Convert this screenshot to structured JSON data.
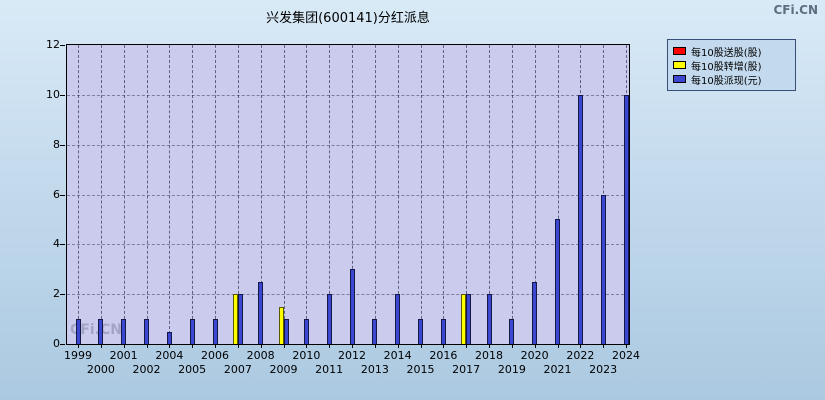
{
  "watermark": "CFi.CN",
  "chart_data": {
    "type": "bar",
    "title": "兴发集团(600141)分红派息",
    "categories": [
      "1999",
      "2000",
      "2001",
      "2002",
      "2004",
      "2005",
      "2006",
      "2007",
      "2008",
      "2009",
      "2010",
      "2011",
      "2012",
      "2013",
      "2014",
      "2015",
      "2016",
      "2017",
      "2018",
      "2019",
      "2020",
      "2021",
      "2022",
      "2023",
      "2024"
    ],
    "series": [
      {
        "name": "每10股送股(股)",
        "color": "#ff0000",
        "values": [
          0,
          0,
          0,
          0,
          0,
          0,
          0,
          0,
          0,
          0,
          0,
          0,
          0,
          0,
          0,
          0,
          0,
          0,
          0,
          0,
          0,
          0,
          0,
          0,
          0
        ]
      },
      {
        "name": "每10股转增(股)",
        "color": "#ffff00",
        "values": [
          0,
          0,
          0,
          0,
          0,
          0,
          0,
          2,
          0,
          1.5,
          0,
          0,
          0,
          0,
          0,
          0,
          0,
          2,
          0,
          0,
          0,
          0,
          0,
          0,
          0
        ]
      },
      {
        "name": "每10股派现(元)",
        "color": "#3b46d1",
        "values": [
          1,
          1,
          1,
          1,
          0.5,
          1,
          1,
          2,
          2.5,
          1,
          1,
          2,
          3,
          1,
          2,
          1,
          1,
          2,
          2,
          1,
          2.5,
          5,
          10,
          6,
          10
        ]
      }
    ],
    "ylim": [
      0,
      12
    ],
    "yticks": [
      0,
      2,
      4,
      6,
      8,
      10,
      12
    ],
    "grid": true,
    "legend_position": "top-right"
  }
}
